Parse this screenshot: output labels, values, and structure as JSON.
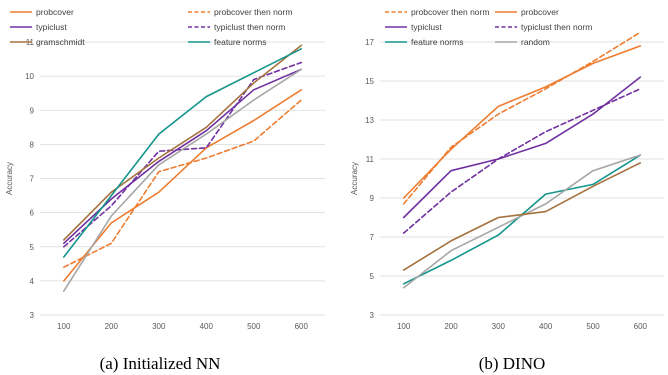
{
  "chart_data": [
    {
      "type": "line",
      "caption": "(a) Initialized NN",
      "title": "",
      "xlabel": "",
      "ylabel": "Accuracy",
      "x": [
        100,
        200,
        300,
        400,
        500,
        600
      ],
      "ylim": [
        3,
        11
      ],
      "yticks": [
        3,
        4,
        5,
        6,
        7,
        8,
        9,
        10,
        11
      ],
      "grid": true,
      "legend": "top",
      "series": [
        {
          "name": "probcover",
          "color": "#ED7D31",
          "dash": "solid",
          "values": [
            4.0,
            5.7,
            6.6,
            7.9,
            8.7,
            9.6
          ]
        },
        {
          "name": "probcover then norm",
          "color": "#ED7D31",
          "dash": "dashed",
          "values": [
            4.4,
            5.1,
            7.2,
            7.6,
            8.1,
            9.3
          ]
        },
        {
          "name": "typiclust",
          "color": "#7030A0",
          "dash": "solid",
          "values": [
            5.1,
            6.4,
            7.5,
            8.4,
            9.6,
            10.2
          ]
        },
        {
          "name": "typiclust then norm",
          "color": "#7030A0",
          "dash": "dashed",
          "values": [
            5.0,
            6.2,
            7.8,
            7.9,
            9.9,
            10.4
          ]
        },
        {
          "name": "gramschmidt",
          "color": "#A5713E",
          "dash": "solid",
          "values": [
            5.2,
            6.6,
            7.6,
            8.5,
            9.8,
            10.9
          ]
        },
        {
          "name": "feature norms",
          "color": "#13958D",
          "dash": "solid",
          "values": [
            4.7,
            6.5,
            8.3,
            9.4,
            10.1,
            10.8
          ]
        },
        {
          "name": "",
          "color": "#A6A6A6",
          "dash": "solid",
          "values": [
            3.7,
            5.9,
            7.4,
            8.3,
            9.3,
            10.2
          ]
        }
      ]
    },
    {
      "type": "line",
      "caption": "(b) DINO",
      "title": "",
      "xlabel": "",
      "ylabel": "Accuracy",
      "x": [
        100,
        200,
        300,
        400,
        500,
        600
      ],
      "ylim": [
        3,
        17
      ],
      "yticks": [
        3,
        5,
        7,
        9,
        11,
        13,
        15,
        17
      ],
      "grid": true,
      "legend": "top",
      "series": [
        {
          "name": "probcover then norm",
          "color": "#ED7D31",
          "dash": "dashed",
          "values": [
            8.7,
            11.6,
            13.3,
            14.6,
            16.0,
            17.5
          ]
        },
        {
          "name": "probcover",
          "color": "#ED7D31",
          "dash": "solid",
          "values": [
            9.0,
            11.5,
            13.7,
            14.7,
            15.9,
            16.8
          ]
        },
        {
          "name": "typiclust",
          "color": "#7030A0",
          "dash": "solid",
          "values": [
            8.0,
            10.4,
            11.0,
            11.8,
            13.3,
            15.2
          ]
        },
        {
          "name": "typiclust then norm",
          "color": "#7030A0",
          "dash": "dashed",
          "values": [
            7.2,
            9.3,
            11.0,
            12.4,
            13.5,
            14.6
          ]
        },
        {
          "name": "feature norms",
          "color": "#13958D",
          "dash": "solid",
          "values": [
            4.6,
            5.8,
            7.1,
            9.2,
            9.7,
            11.2
          ]
        },
        {
          "name": "random",
          "color": "#A6A6A6",
          "dash": "solid",
          "values": [
            4.4,
            6.3,
            7.5,
            8.7,
            10.4,
            11.2
          ]
        },
        {
          "name": "",
          "color": "#A5713E",
          "dash": "solid",
          "values": [
            5.3,
            6.8,
            8.0,
            8.3,
            9.6,
            10.8
          ]
        }
      ]
    }
  ]
}
